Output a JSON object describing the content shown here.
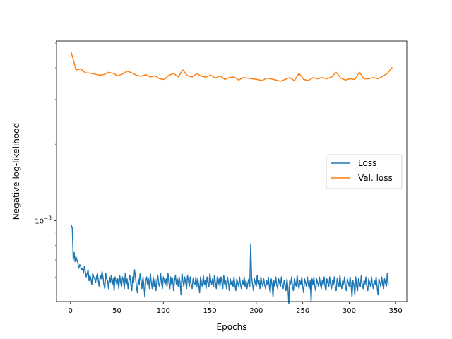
{
  "chart_data": {
    "type": "line",
    "title": "",
    "xlabel": "Epochs",
    "ylabel": "Negative log-likelihood",
    "xlim": [
      -15,
      362
    ],
    "ylim": [
      0.00048,
      0.0051
    ],
    "yscale": "log",
    "x_ticks": [
      0,
      50,
      100,
      150,
      200,
      250,
      300,
      350
    ],
    "x_tick_labels": [
      "0",
      "50",
      "100",
      "150",
      "200",
      "250",
      "300",
      "350"
    ],
    "y_major_ticks": [
      0.001
    ],
    "y_tick_labels": [
      "10−3"
    ],
    "y_minor_ticks": [
      0.0005,
      0.0006,
      0.0007,
      0.0008,
      0.0009,
      0.002,
      0.003,
      0.004,
      0.005
    ],
    "grid": false,
    "legend_position": "center-right",
    "series": [
      {
        "name": "Loss",
        "color": "#1f77b4",
        "x_start": 1,
        "x_step": 1,
        "values": [
          0.00096,
          0.00093,
          0.0007,
          0.00075,
          0.00069,
          0.00072,
          0.0007,
          0.00068,
          0.00065,
          0.00067,
          0.00066,
          0.00064,
          0.00065,
          0.00062,
          0.00066,
          0.00063,
          0.0006,
          0.00062,
          0.00064,
          0.00058,
          0.00061,
          0.00059,
          0.00056,
          0.00062,
          0.0006,
          0.00059,
          0.00057,
          0.0006,
          0.00062,
          0.00058,
          0.00055,
          0.00061,
          0.00059,
          0.00063,
          0.0006,
          0.00056,
          0.00054,
          0.00062,
          0.00059,
          0.00058,
          0.00054,
          0.0006,
          0.00057,
          0.00061,
          0.00056,
          0.00059,
          0.00053,
          0.0006,
          0.00058,
          0.00056,
          0.00059,
          0.00054,
          0.00061,
          0.00057,
          0.00055,
          0.0006,
          0.00058,
          0.00054,
          0.00062,
          0.00056,
          0.00059,
          0.00054,
          0.00058,
          0.00061,
          0.00056,
          0.00053,
          0.0006,
          0.00057,
          0.00064,
          0.0006,
          0.00055,
          0.00052,
          0.00059,
          0.00056,
          0.00062,
          0.00058,
          0.00054,
          0.0006,
          0.00056,
          0.0005,
          0.00058,
          0.0006,
          0.00056,
          0.00059,
          0.00054,
          0.00062,
          0.00057,
          0.00054,
          0.0006,
          0.00055,
          0.00059,
          0.00053,
          0.00058,
          0.00061,
          0.00056,
          0.00055,
          0.00062,
          0.00057,
          0.00054,
          0.0006,
          0.00058,
          0.00056,
          0.00059,
          0.00055,
          0.00062,
          0.00057,
          0.00054,
          0.0006,
          0.00056,
          0.00059,
          0.00053,
          0.00058,
          0.00061,
          0.00056,
          0.00059,
          0.00055,
          0.0006,
          0.00057,
          0.00051,
          0.00062,
          0.00058,
          0.00055,
          0.0006,
          0.00057,
          0.00054,
          0.00061,
          0.00058,
          0.00055,
          0.0006,
          0.00056,
          0.00054,
          0.00059,
          0.00057,
          0.00056,
          0.0006,
          0.00055,
          0.00059,
          0.00056,
          0.00052,
          0.0006,
          0.00057,
          0.00055,
          0.00061,
          0.00056,
          0.00058,
          0.00054,
          0.0006,
          0.00057,
          0.00055,
          0.00062,
          0.00058,
          0.00056,
          0.00059,
          0.00055,
          0.00061,
          0.00057,
          0.00054,
          0.0006,
          0.00056,
          0.00059,
          0.00055,
          0.0006,
          0.00057,
          0.00054,
          0.00061,
          0.00056,
          0.00058,
          0.00054,
          0.0006,
          0.00057,
          0.00053,
          0.00059,
          0.00056,
          0.00058,
          0.00055,
          0.0006,
          0.00056,
          0.00053,
          0.00059,
          0.00057,
          0.00055,
          0.0006,
          0.00056,
          0.00054,
          0.00058,
          0.00056,
          0.0006,
          0.00055,
          0.00058,
          0.00054,
          0.00057,
          0.00059,
          0.00055,
          0.00081,
          0.0006,
          0.00056,
          0.00053,
          0.00059,
          0.00057,
          0.00055,
          0.00061,
          0.00056,
          0.00058,
          0.00054,
          0.0006,
          0.00057,
          0.00055,
          0.00059,
          0.00056,
          0.00054,
          0.00058,
          0.00056,
          0.0006,
          0.00055,
          0.00052,
          0.00059,
          0.00056,
          0.0005,
          0.00058,
          0.00055,
          0.0006,
          0.00056,
          0.00054,
          0.00059,
          0.00057,
          0.00055,
          0.0006,
          0.00056,
          0.00054,
          0.00058,
          0.00056,
          0.00053,
          0.00059,
          0.00055,
          0.00047,
          0.00058,
          0.00056,
          0.0006,
          0.00055,
          0.00053,
          0.00059,
          0.00057,
          0.00055,
          0.00061,
          0.00056,
          0.00054,
          0.00058,
          0.00056,
          0.0006,
          0.00055,
          0.00052,
          0.00059,
          0.00057,
          0.00055,
          0.0006,
          0.00056,
          0.00054,
          0.00058,
          0.00048,
          0.00059,
          0.00056,
          0.0006,
          0.00055,
          0.00053,
          0.00059,
          0.00057,
          0.00055,
          0.0006,
          0.00056,
          0.00054,
          0.00058,
          0.00056,
          0.0006,
          0.00055,
          0.00053,
          0.00059,
          0.00057,
          0.00055,
          0.0006,
          0.00056,
          0.00054,
          0.00058,
          0.00056,
          0.0006,
          0.00055,
          0.00053,
          0.00059,
          0.00057,
          0.00055,
          0.00061,
          0.00056,
          0.00054,
          0.00058,
          0.00056,
          0.0006,
          0.00055,
          0.00053,
          0.00059,
          0.00057,
          0.00055,
          0.0006,
          0.00056,
          0.0005,
          0.00058,
          0.00056,
          0.00051,
          0.0006,
          0.00055,
          0.00053,
          0.00059,
          0.00057,
          0.00055,
          0.00061,
          0.00056,
          0.00054,
          0.00058,
          0.00056,
          0.0006,
          0.00055,
          0.00053,
          0.00059,
          0.00057,
          0.00055,
          0.0006,
          0.00056,
          0.00054,
          0.00058,
          0.00056,
          0.0006,
          0.00055,
          0.00051,
          0.00059,
          0.00057,
          0.00055,
          0.0006,
          0.00056,
          0.00054,
          0.00059,
          0.00057,
          0.00055,
          0.00062,
          0.00056
        ]
      },
      {
        "name": "Val. loss",
        "color": "#ff7f0e",
        "x_start": 1,
        "x_step": 5,
        "values": [
          0.00458,
          0.00392,
          0.00396,
          0.00382,
          0.00381,
          0.00378,
          0.00374,
          0.00376,
          0.00384,
          0.0038,
          0.00372,
          0.00378,
          0.00388,
          0.00382,
          0.00374,
          0.0037,
          0.00376,
          0.00368,
          0.00372,
          0.00362,
          0.0036,
          0.00374,
          0.0038,
          0.00368,
          0.00392,
          0.00372,
          0.00368,
          0.0038,
          0.0037,
          0.00368,
          0.00374,
          0.00364,
          0.00372,
          0.0036,
          0.00366,
          0.00368,
          0.00358,
          0.00366,
          0.00364,
          0.00362,
          0.0036,
          0.00356,
          0.00364,
          0.00362,
          0.00358,
          0.00354,
          0.0036,
          0.00366,
          0.00356,
          0.0038,
          0.0036,
          0.00356,
          0.00366,
          0.00362,
          0.00366,
          0.00362,
          0.00368,
          0.00384,
          0.00364,
          0.00358,
          0.00362,
          0.0036,
          0.00384,
          0.00362,
          0.00362,
          0.00366,
          0.00362,
          0.0037,
          0.0038,
          0.004
        ]
      }
    ]
  }
}
